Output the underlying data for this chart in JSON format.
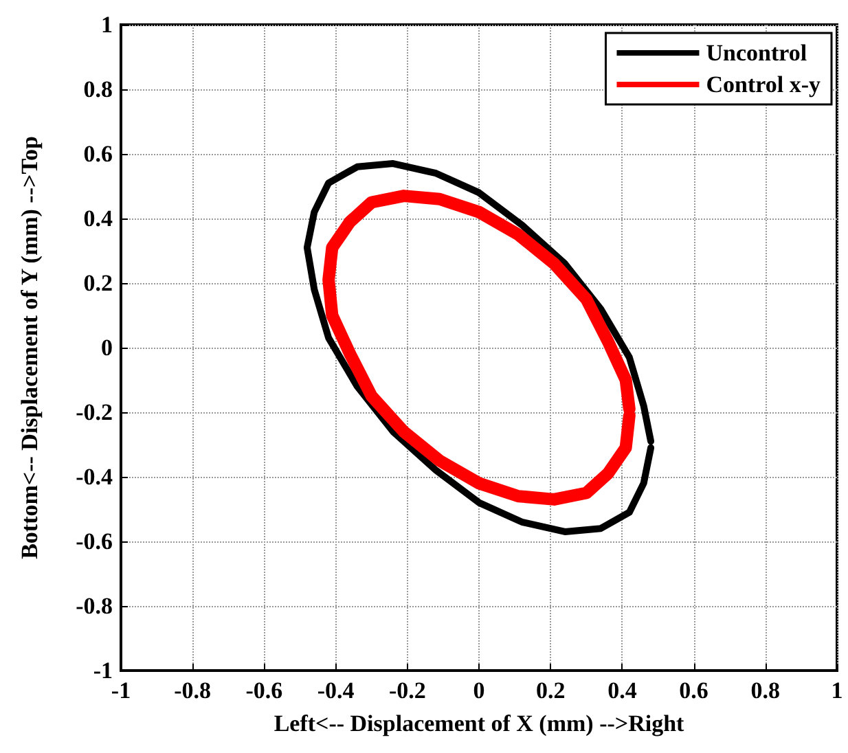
{
  "chart_data": {
    "type": "line",
    "xlabel": "Left<-- Displacement of X (mm) -->Right",
    "ylabel": "Bottom<-- Displacement of Y (mm) -->Top",
    "xlim": [
      -1,
      1
    ],
    "ylim": [
      -1,
      1
    ],
    "xticks": [
      -1,
      -0.8,
      -0.6,
      -0.4,
      -0.2,
      0,
      0.2,
      0.4,
      0.6,
      0.8,
      1
    ],
    "yticks": [
      -1,
      -0.8,
      -0.6,
      -0.4,
      -0.2,
      0,
      0.2,
      0.4,
      0.6,
      0.8,
      1
    ],
    "grid": true,
    "legend": "top right",
    "marker": "none",
    "line_style": "solid",
    "series": [
      {
        "name": "Uncontrol",
        "color": "#000000",
        "x": [
          0.48,
          0.46,
          0.42,
          0.34,
          0.24,
          0.12,
          0,
          -0.12,
          -0.24,
          -0.34,
          -0.42,
          -0.46,
          -0.48,
          -0.46,
          -0.42,
          -0.34,
          -0.24,
          -0.12,
          0,
          0.12,
          0.24,
          0.34,
          0.42,
          0.46,
          0.48
        ],
        "values": [
          -0.31,
          -0.42,
          -0.51,
          -0.56,
          -0.57,
          -0.54,
          -0.48,
          -0.38,
          -0.26,
          -0.12,
          0.03,
          0.18,
          0.31,
          0.42,
          0.51,
          0.56,
          0.57,
          0.54,
          0.48,
          0.38,
          0.26,
          0.12,
          -0.03,
          -0.18,
          -0.29
        ]
      },
      {
        "name": "Control x-y",
        "color": "#ff0000",
        "x": [
          0.42,
          0.41,
          0.36,
          0.3,
          0.21,
          0.11,
          0,
          -0.11,
          -0.21,
          -0.3,
          -0.36,
          -0.41,
          -0.42,
          -0.41,
          -0.36,
          -0.3,
          -0.21,
          -0.11,
          0,
          0.11,
          0.21,
          0.3,
          0.36,
          0.41,
          0.42
        ],
        "values": [
          -0.21,
          -0.31,
          -0.39,
          -0.45,
          -0.47,
          -0.46,
          -0.42,
          -0.35,
          -0.26,
          -0.15,
          -0.02,
          0.1,
          0.21,
          0.31,
          0.39,
          0.45,
          0.47,
          0.46,
          0.42,
          0.35,
          0.26,
          0.15,
          0.02,
          -0.1,
          -0.19
        ]
      }
    ]
  }
}
